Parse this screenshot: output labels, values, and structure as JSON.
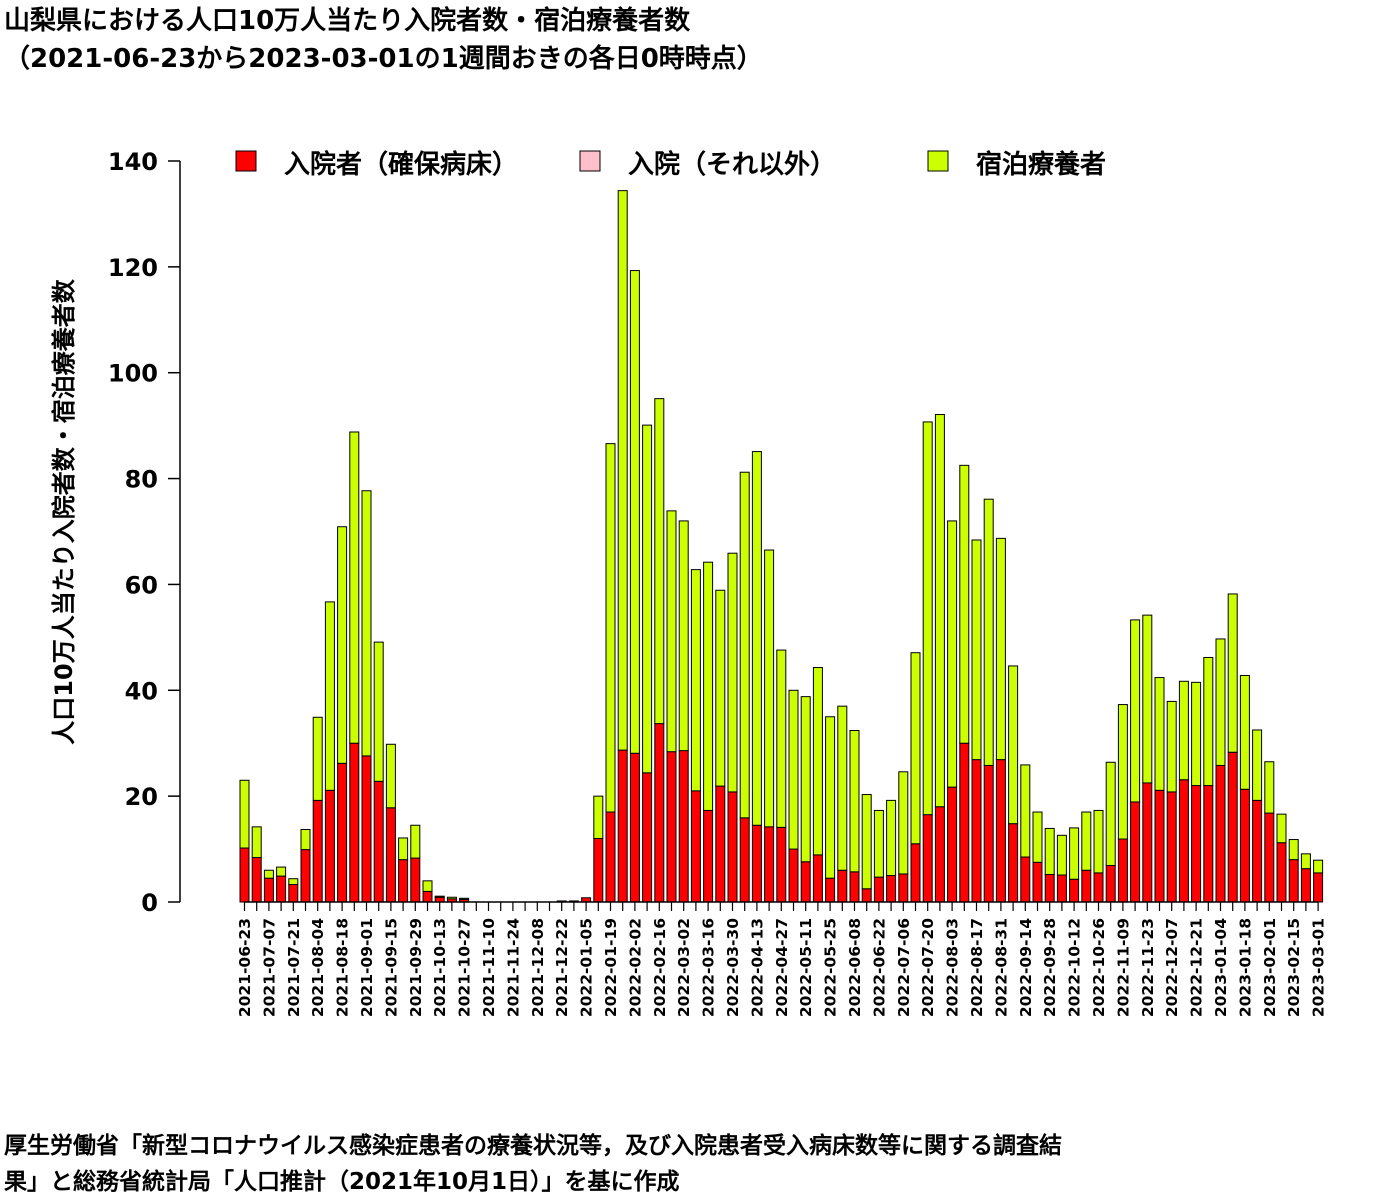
{
  "title_line1": "山梨県における人口10万人当たり入院者数・宿泊療養者数",
  "title_line2": "（2021-06-23から2023-03-01の1週間おきの各日0時時点）",
  "footer_line1": "厚生労働省「新型コロナウイルス感染症患者の療養状況等，及び入院患者受入病床数等に関する調査結",
  "footer_line2": "果」と総務省統計局「人口推計（2021年10月1日）」を基に作成",
  "chart_data": {
    "type": "bar",
    "stacked": true,
    "ylabel": "人口10万人当たり入院者数・宿泊療養者数",
    "ylim": [
      0,
      140
    ],
    "yticks": [
      0,
      20,
      40,
      60,
      80,
      100,
      120,
      140
    ],
    "legend_position": "top",
    "x": [
      "2021-06-23",
      "2021-06-30",
      "2021-07-07",
      "2021-07-14",
      "2021-07-21",
      "2021-07-28",
      "2021-08-04",
      "2021-08-11",
      "2021-08-18",
      "2021-08-25",
      "2021-09-01",
      "2021-09-08",
      "2021-09-15",
      "2021-09-22",
      "2021-09-29",
      "2021-10-06",
      "2021-10-13",
      "2021-10-20",
      "2021-10-27",
      "2021-11-03",
      "2021-11-10",
      "2021-11-17",
      "2021-11-24",
      "2021-12-01",
      "2021-12-08",
      "2021-12-15",
      "2021-12-22",
      "2021-12-29",
      "2022-01-05",
      "2022-01-12",
      "2022-01-19",
      "2022-01-26",
      "2022-02-02",
      "2022-02-09",
      "2022-02-16",
      "2022-02-23",
      "2022-03-02",
      "2022-03-09",
      "2022-03-16",
      "2022-03-23",
      "2022-03-30",
      "2022-04-06",
      "2022-04-13",
      "2022-04-20",
      "2022-04-27",
      "2022-05-04",
      "2022-05-11",
      "2022-05-18",
      "2022-05-25",
      "2022-06-01",
      "2022-06-08",
      "2022-06-15",
      "2022-06-22",
      "2022-06-29",
      "2022-07-06",
      "2022-07-13",
      "2022-07-20",
      "2022-07-27",
      "2022-08-03",
      "2022-08-10",
      "2022-08-17",
      "2022-08-24",
      "2022-08-31",
      "2022-09-07",
      "2022-09-14",
      "2022-09-21",
      "2022-09-28",
      "2022-10-05",
      "2022-10-12",
      "2022-10-19",
      "2022-10-26",
      "2022-11-02",
      "2022-11-09",
      "2022-11-16",
      "2022-11-23",
      "2022-11-30",
      "2022-12-07",
      "2022-12-14",
      "2022-12-21",
      "2022-12-28",
      "2023-01-04",
      "2023-01-11",
      "2023-01-18",
      "2023-01-25",
      "2023-02-01",
      "2023-02-08",
      "2023-02-15",
      "2023-02-22",
      "2023-03-01"
    ],
    "xtick_labels": [
      "2021-06-23",
      "2021-07-07",
      "2021-07-21",
      "2021-08-04",
      "2021-08-18",
      "2021-09-01",
      "2021-09-15",
      "2021-09-29",
      "2021-10-13",
      "2021-10-27",
      "2021-11-10",
      "2021-11-24",
      "2021-12-08",
      "2021-12-22",
      "2022-01-05",
      "2022-01-19",
      "2022-02-02",
      "2022-02-16",
      "2022-03-02",
      "2022-03-16",
      "2022-03-30",
      "2022-04-13",
      "2022-04-27",
      "2022-05-11",
      "2022-05-25",
      "2022-06-08",
      "2022-06-22",
      "2022-07-06",
      "2022-07-20",
      "2022-08-03",
      "2022-08-17",
      "2022-08-31",
      "2022-09-14",
      "2022-09-28",
      "2022-10-12",
      "2022-10-26",
      "2022-11-09",
      "2022-11-23",
      "2022-12-07",
      "2022-12-21",
      "2023-01-04",
      "2023-01-18",
      "2023-02-01",
      "2023-02-15",
      "2023-03-01"
    ],
    "series": [
      {
        "name": "入院者（確保病床）",
        "color": "#ff0000",
        "values": [
          10.2,
          8.4,
          4.5,
          4.9,
          3.3,
          9.9,
          19.2,
          21.1,
          26.2,
          30.0,
          27.6,
          22.8,
          17.8,
          8.0,
          8.3,
          2.0,
          0.9,
          0.6,
          0.5,
          0,
          0,
          0,
          0,
          0,
          0,
          0,
          0.2,
          0.2,
          0.8,
          12.0,
          17.0,
          28.7,
          28.1,
          24.4,
          33.7,
          28.4,
          28.6,
          21.0,
          17.3,
          21.9,
          20.8,
          15.9,
          14.5,
          14.2,
          14.1,
          10.0,
          7.6,
          8.9,
          4.5,
          6.0,
          5.7,
          2.5,
          4.7,
          5.0,
          5.3,
          11.0,
          16.5,
          18.0,
          21.7,
          30.0,
          26.9,
          25.8,
          26.9,
          14.8,
          8.5,
          7.5,
          5.2,
          5.1,
          4.3,
          6.0,
          5.5,
          6.9,
          11.9,
          18.9,
          22.5,
          21.1,
          20.8,
          23.1,
          22.0,
          22.0,
          25.8,
          28.3,
          21.3,
          19.2,
          16.8,
          11.2,
          8.0,
          6.3,
          5.5
        ]
      },
      {
        "name": "入院（それ以外）",
        "color": "#ffc0cb",
        "values": [
          0,
          0,
          0,
          0,
          0,
          0,
          0,
          0,
          0,
          0,
          0,
          0,
          0,
          0,
          0,
          0,
          0,
          0,
          0,
          0,
          0,
          0,
          0,
          0,
          0,
          0,
          0,
          0,
          0,
          0,
          0,
          0,
          0,
          0,
          0,
          0,
          0,
          0,
          0,
          0,
          0,
          0,
          0,
          0,
          0,
          0,
          0,
          0,
          0,
          0,
          0,
          0,
          0,
          0,
          0,
          0,
          0,
          0,
          0,
          0,
          0,
          0,
          0,
          0,
          0,
          0,
          0,
          0,
          0,
          0,
          0,
          0,
          0,
          0,
          0,
          0,
          0,
          0,
          0,
          0,
          0,
          0,
          0,
          0,
          0,
          0,
          0,
          0,
          0
        ]
      },
      {
        "name": "宿泊療養者",
        "color": "#ccff00",
        "values": [
          12.8,
          5.8,
          1.5,
          1.7,
          1.1,
          3.8,
          15.7,
          35.6,
          44.7,
          58.8,
          50.1,
          26.3,
          12.0,
          4.1,
          6.2,
          2.0,
          0.2,
          0.3,
          0.2,
          0,
          0,
          0,
          0,
          0,
          0,
          0,
          0,
          0,
          0,
          8.0,
          69.6,
          105.7,
          91.2,
          65.7,
          61.4,
          45.5,
          43.4,
          41.8,
          46.9,
          37.0,
          45.1,
          65.3,
          70.6,
          52.3,
          33.5,
          30.0,
          31.2,
          35.4,
          30.5,
          31.0,
          26.7,
          17.8,
          12.6,
          14.2,
          19.3,
          36.1,
          74.2,
          74.1,
          50.3,
          52.5,
          41.5,
          50.3,
          41.8,
          29.8,
          17.4,
          9.5,
          8.7,
          7.5,
          9.7,
          11.0,
          11.8,
          19.5,
          25.4,
          34.4,
          31.7,
          21.3,
          17.1,
          18.6,
          19.5,
          24.2,
          23.9,
          29.9,
          21.5,
          13.3,
          9.7,
          5.4,
          3.8,
          2.8,
          2.4
        ]
      }
    ]
  }
}
